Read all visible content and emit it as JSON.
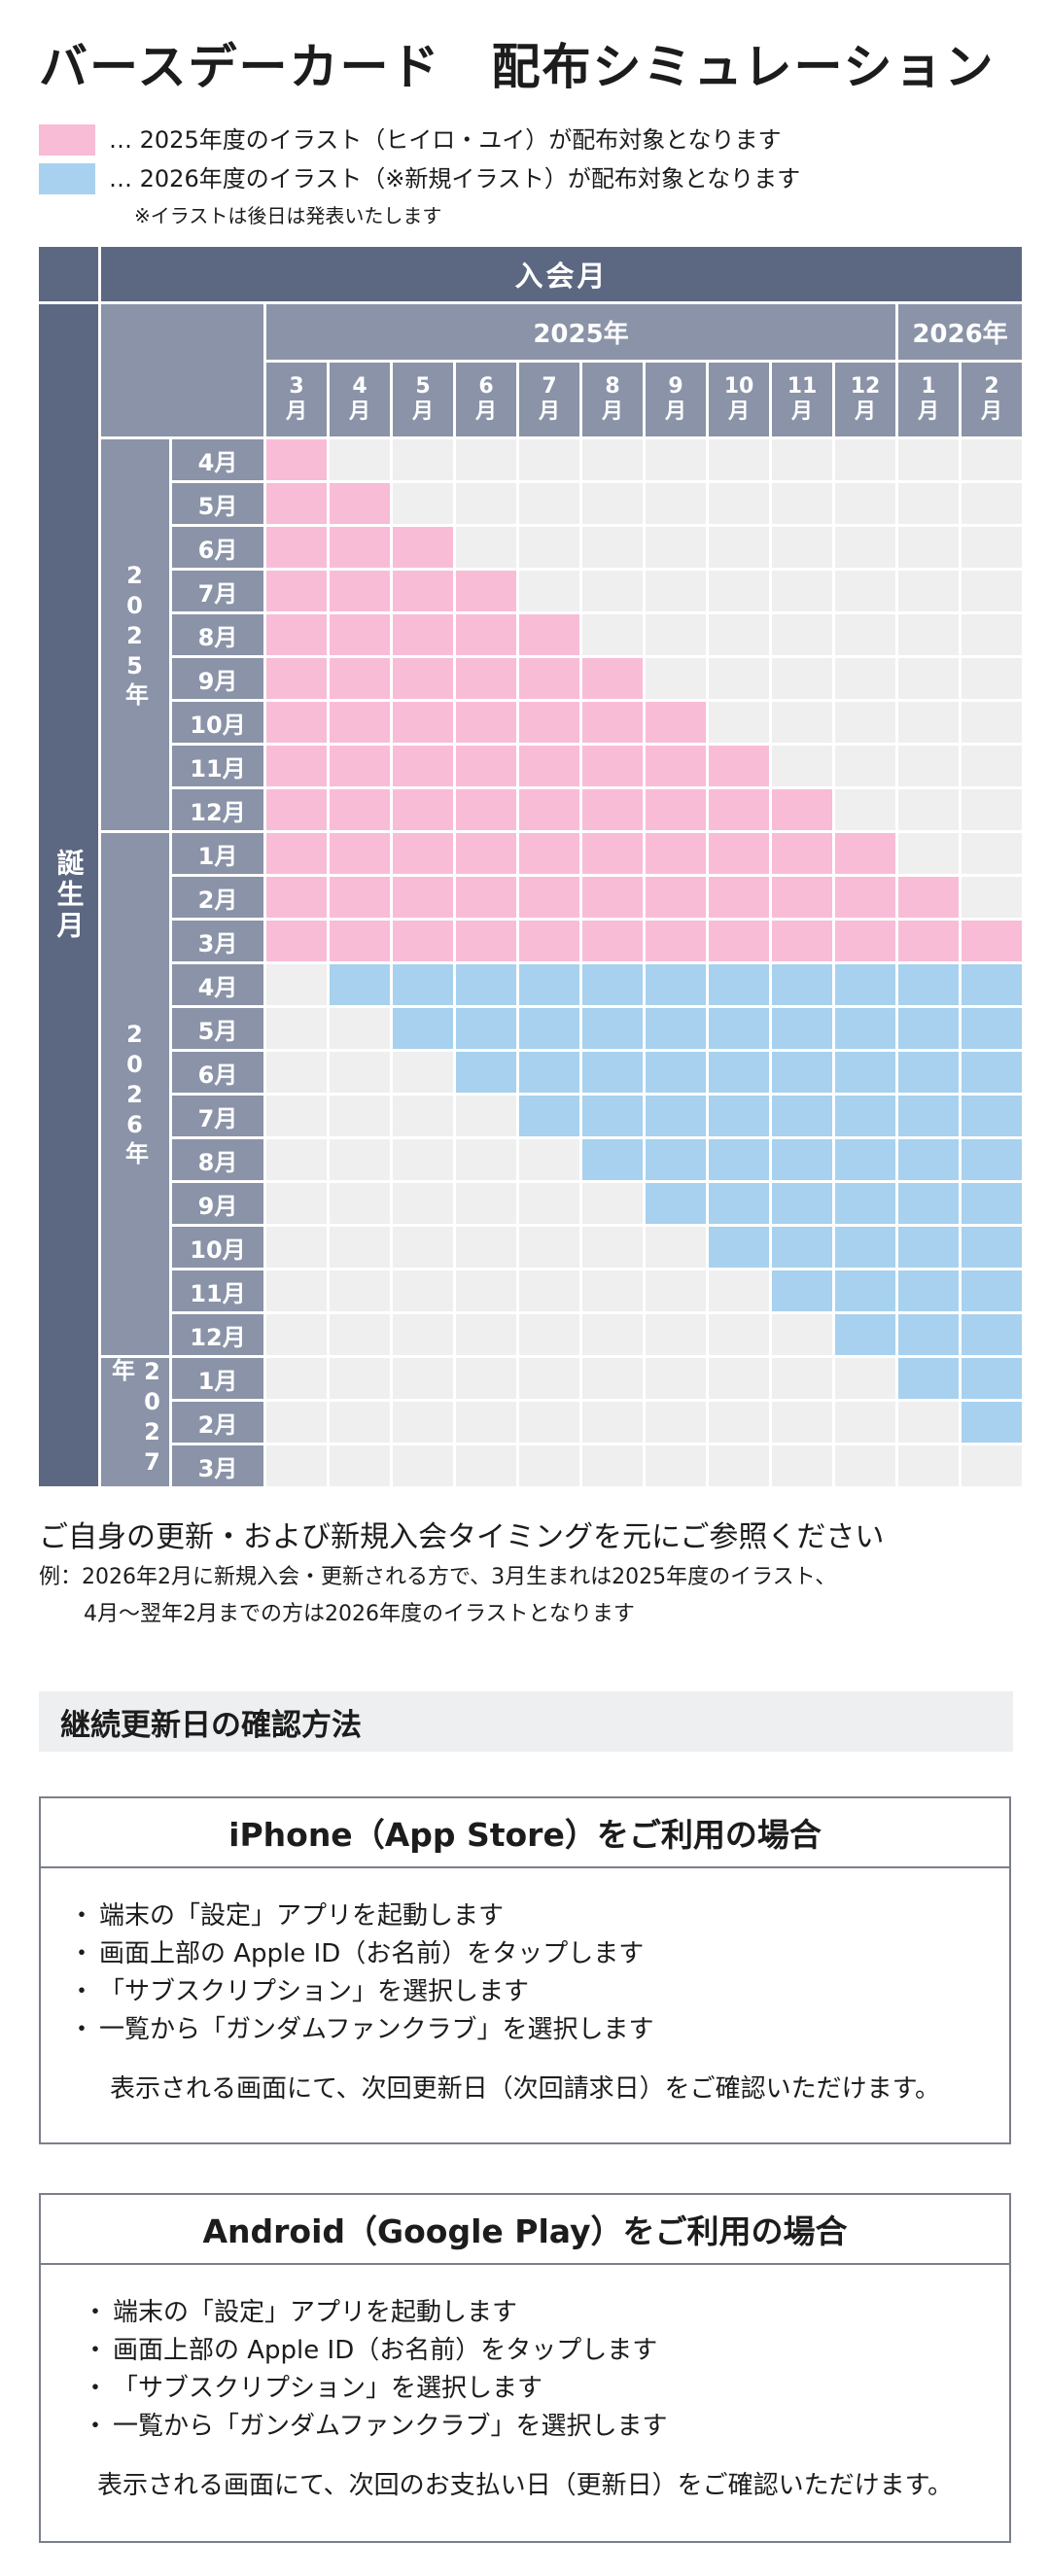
{
  "title": "バースデーカード　配布シミュレーション",
  "legend": [
    {
      "text": "… 2025年度のイラスト（ヒイロ・ユイ）が配布対象となります",
      "color": "#f8bcd7"
    },
    {
      "text": "… 2026年度のイラスト（※新規イラスト）が配布対象となります",
      "color": "#a7d1ee"
    }
  ],
  "legend_note": "※イラストは後日は発表いたします",
  "table": {
    "join_header": "入会月",
    "birth_header": "誕生月",
    "join_years": [
      {
        "label": "2025年",
        "span": 10
      },
      {
        "label": "2026年",
        "span": 2
      }
    ],
    "join_months": [
      "3\n月",
      "4\n月",
      "5\n月",
      "6\n月",
      "7\n月",
      "8\n月",
      "9\n月",
      "10\n月",
      "11\n月",
      "12\n月",
      "1\n月",
      "2\n月"
    ],
    "birth_years": [
      {
        "label": "2025年",
        "span": 9
      },
      {
        "label": "2026年",
        "span": 12
      },
      {
        "label": "2027年",
        "span": 3
      }
    ],
    "birth_months": [
      "4月",
      "5月",
      "6月",
      "7月",
      "8月",
      "9月",
      "10月",
      "11月",
      "12月",
      "1月",
      "2月",
      "3月",
      "4月",
      "5月",
      "6月",
      "7月",
      "8月",
      "9月",
      "10月",
      "11月",
      "12月",
      "1月",
      "2月",
      "3月"
    ],
    "grid": [
      "P...........",
      "PP..........",
      "PPP.........",
      "PPPP........",
      "PPPPP.......",
      "PPPPPP......",
      "PPPPPPP.....",
      "PPPPPPPP....",
      "PPPPPPPPP...",
      "PPPPPPPPPP..",
      "PPPPPPPPPPP.",
      "PPPPPPPPPPPP",
      ".BBBBBBBBBBB",
      "..BBBBBBBBBB",
      "...BBBBBBBBB",
      "....BBBBBBBB",
      ".....BBBBBBB",
      "......BBBBBB",
      ".......BBBBB",
      "........BBBB",
      ".........BBB",
      "..........BB",
      "...........B",
      "............"
    ],
    "colors": {
      "pink": "#f8bcd7",
      "blue": "#a7d1ee",
      "empty": "#efefef",
      "header_dark": "#5c6882",
      "header_mid": "#8a93a7"
    }
  },
  "guide": {
    "line1": "ご自身の更新・および新規入会タイミングを元にご参照ください",
    "line2": "例：2026年2月に新規入会・更新される方で、3月生まれは2025年度のイラスト、",
    "line3": "4月～翌年2月までの方は2026年度のイラストとなります"
  },
  "section_title": "継続更新日の確認方法",
  "boxes": [
    {
      "heading": "iPhone（App Store）をご利用の場合",
      "items": [
        "端末の「設定」アプリを起動します",
        "画面上部の Apple ID（お名前）をタップします",
        "「サブスクリプション」を選択します",
        "一覧から「ガンダムファンクラブ」を選択します"
      ],
      "footer": "表示される画面にて、次回更新日（次回請求日）をご確認いただけます。"
    },
    {
      "heading": "Android（Google Play）をご利用の場合",
      "items": [
        "端末の「設定」アプリを起動します",
        "画面上部の Apple ID（お名前）をタップします",
        "「サブスクリプション」を選択します",
        "一覧から「ガンダムファンクラブ」を選択します"
      ],
      "footer": "表示される画面にて、次回のお支払い日（更新日）をご確認いただけます。"
    }
  ],
  "bullet": "・"
}
